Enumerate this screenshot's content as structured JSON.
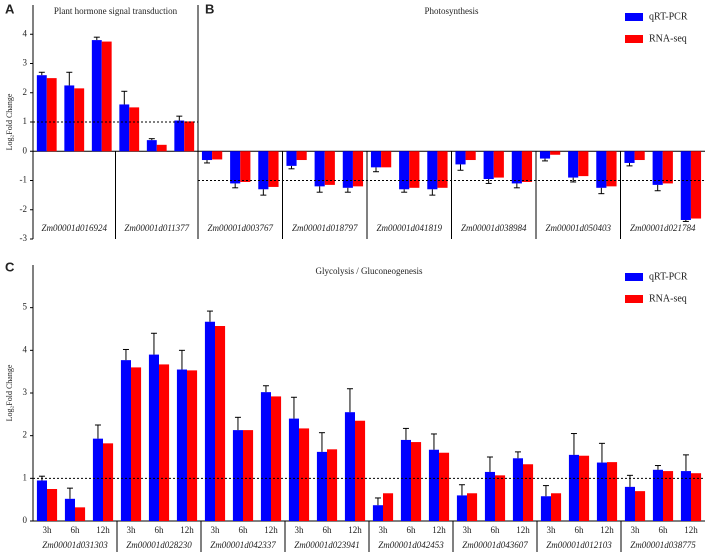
{
  "chart_data": [
    {
      "type": "bar",
      "panel_label": "A",
      "title": "Plant hormone signal transduction",
      "y_label": "Log₂Fold Change",
      "categories": [
        null,
        null,
        null,
        null,
        null,
        null
      ],
      "groups": [
        "Zm00001d016924",
        "Zm00001d011377"
      ],
      "series": [
        {
          "color": "#0000ff",
          "values": [
            2.6,
            2.25,
            3.8,
            1.6,
            0.38,
            1.05
          ],
          "errors": [
            0.1,
            0.45,
            0.1,
            0.45,
            0.05,
            0.15
          ]
        },
        {
          "color": "#ff0000",
          "values": [
            2.5,
            2.15,
            3.75,
            1.5,
            0.22,
            1.02
          ]
        }
      ],
      "ylim": [
        -3,
        5
      ],
      "yticks": [
        -3,
        -2,
        -1,
        0,
        1,
        2,
        3,
        4
      ],
      "reference_line": 1
    },
    {
      "type": "bar",
      "panel_label": "B",
      "title": "Photosynthesis",
      "categories": [
        null,
        null,
        null,
        null,
        null,
        null,
        null,
        null,
        null,
        null,
        null,
        null,
        null,
        null,
        null,
        null,
        null,
        null
      ],
      "groups": [
        "Zm00001d003767",
        "Zm00001d018797",
        "Zm00001d041819",
        "Zm00001d038984",
        "Zm00001d050403",
        "Zm00001d021784"
      ],
      "series": [
        {
          "name": "qRT-PCR",
          "color": "#0000ff",
          "values": [
            -0.3,
            -1.1,
            -1.3,
            -0.5,
            -1.2,
            -1.25,
            -0.55,
            -1.3,
            -1.3,
            -0.45,
            -0.95,
            -1.1,
            -0.25,
            -0.9,
            -1.25,
            -0.4,
            -1.15,
            -2.35
          ],
          "errors": [
            0.1,
            0.15,
            0.2,
            0.1,
            0.2,
            0.15,
            0.15,
            0.1,
            0.2,
            0.2,
            0.15,
            0.15,
            0.08,
            0.15,
            0.2,
            0.1,
            0.2,
            0.05
          ]
        },
        {
          "name": "RNA-seq",
          "color": "#ff0000",
          "values": [
            -0.28,
            -1.05,
            -1.22,
            -0.3,
            -1.15,
            -1.2,
            -0.55,
            -1.25,
            -1.25,
            -0.3,
            -0.9,
            -1.05,
            -0.12,
            -0.85,
            -1.2,
            -0.3,
            -1.1,
            -2.3
          ]
        }
      ],
      "ylim": [
        -3,
        5
      ],
      "reference_line": -1,
      "legend": "upper right"
    },
    {
      "type": "bar",
      "panel_label": "C",
      "title": "Glycolysis / Gluconeogenesis",
      "y_label": "Log₂Fold Change",
      "categories": [
        "3h",
        "6h",
        "12h",
        "3h",
        "6h",
        "12h",
        "3h",
        "6h",
        "12h",
        "3h",
        "6h",
        "12h",
        "3h",
        "6h",
        "12h",
        "3h",
        "6h",
        "12h",
        "3h",
        "6h",
        "12h",
        "3h",
        "6h",
        "12h"
      ],
      "groups": [
        "Zm00001d031303",
        "Zm00001d028230",
        "Zm00001d042337",
        "Zm00001d023941",
        "Zm00001d042453",
        "Zm00001d043607",
        "Zm00001d012103",
        "Zm00001d038775"
      ],
      "series": [
        {
          "name": "qRT-PCR",
          "color": "#0000ff",
          "values": [
            0.95,
            0.52,
            1.93,
            3.77,
            3.9,
            3.55,
            4.67,
            2.13,
            3.02,
            2.4,
            1.62,
            2.55,
            0.37,
            1.9,
            1.67,
            0.6,
            1.15,
            1.47,
            0.58,
            1.55,
            1.37,
            0.8,
            1.2,
            1.17
          ],
          "errors": [
            0.1,
            0.25,
            0.32,
            0.25,
            0.5,
            0.45,
            0.25,
            0.3,
            0.15,
            0.5,
            0.45,
            0.55,
            0.17,
            0.27,
            0.37,
            0.25,
            0.35,
            0.15,
            0.25,
            0.5,
            0.45,
            0.27,
            0.1,
            0.38
          ]
        },
        {
          "name": "RNA-seq",
          "color": "#ff0000",
          "values": [
            0.75,
            0.32,
            1.82,
            3.6,
            3.67,
            3.53,
            4.57,
            2.13,
            2.92,
            2.17,
            1.68,
            2.35,
            0.65,
            1.85,
            1.6,
            0.65,
            1.07,
            1.33,
            0.65,
            1.53,
            1.38,
            0.7,
            1.17,
            1.12
          ]
        }
      ],
      "ylim": [
        0,
        6
      ],
      "yticks": [
        0,
        1,
        2,
        3,
        4,
        5
      ],
      "reference_line": 1,
      "legend": "upper right"
    }
  ]
}
